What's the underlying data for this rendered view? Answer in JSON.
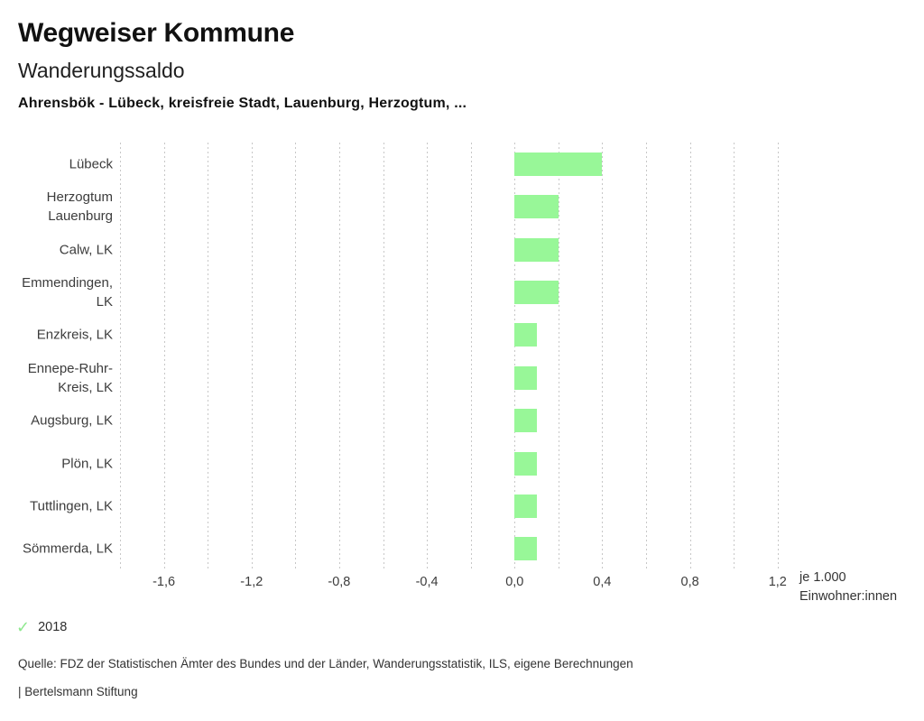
{
  "header": {
    "app_title": "Wegweiser Kommune",
    "chart_title": "Wanderungssaldo",
    "subtitle": "Ahrensbök - Lübeck, kreisfreie Stadt, Lauenburg, Herzogtum, ..."
  },
  "chart_data": {
    "type": "bar",
    "orientation": "horizontal",
    "title": "Wanderungssaldo",
    "categories": [
      "Lübeck",
      "Herzogtum Lauenburg",
      "Calw, LK",
      "Emmendingen, LK",
      "Enzkreis, LK",
      "Ennepe-Ruhr-Kreis, LK",
      "Augsburg, LK",
      "Plön, LK",
      "Tuttlingen, LK",
      "Sömmerda, LK"
    ],
    "category_label_lines": [
      [
        "Lübeck"
      ],
      [
        "Herzogtum",
        "Lauenburg"
      ],
      [
        "Calw, LK"
      ],
      [
        "Emmendingen,",
        "LK"
      ],
      [
        "Enzkreis, LK"
      ],
      [
        "Ennepe-Ruhr-",
        "Kreis, LK"
      ],
      [
        "Augsburg, LK"
      ],
      [
        "Plön, LK"
      ],
      [
        "Tuttlingen, LK"
      ],
      [
        "Sömmerda, LK"
      ]
    ],
    "series_name": "2018",
    "values": [
      0.4,
      0.2,
      0.2,
      0.2,
      0.1,
      0.1,
      0.1,
      0.1,
      0.1,
      0.1
    ],
    "xlabel": "je 1.000 Einwohner:innen",
    "xlabel_lines": [
      "je 1.000",
      "Einwohner:innen"
    ],
    "xlim": [
      -1.8,
      1.275
    ],
    "grid": {
      "from": -1.8,
      "to": 1.2,
      "step": 0.2,
      "style": "dashed"
    },
    "ticks": [
      {
        "value": -1.6,
        "label": "-1,6"
      },
      {
        "value": -1.2,
        "label": "-1,2"
      },
      {
        "value": -0.8,
        "label": "-0,8"
      },
      {
        "value": -0.4,
        "label": "-0,4"
      },
      {
        "value": 0.0,
        "label": "0,0"
      },
      {
        "value": 0.4,
        "label": "0,4"
      },
      {
        "value": 0.8,
        "label": "0,8"
      },
      {
        "value": 1.2,
        "label": "1,2"
      }
    ],
    "legend": {
      "position": "bottom-left",
      "items": [
        {
          "label": "2018",
          "checked": true
        }
      ]
    },
    "colors": {
      "bar": "#98f798",
      "grid": "#c7c7c7",
      "check": "#8ee88e"
    }
  },
  "footer": {
    "source": "Quelle: FDZ der Statistischen Ämter des Bundes und der Länder, Wanderungsstatistik, ILS, eigene Berechnungen",
    "brand": "| Bertelsmann Stiftung"
  }
}
